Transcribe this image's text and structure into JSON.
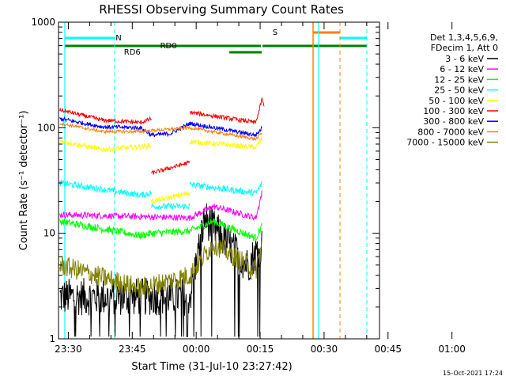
{
  "chart_data": {
    "type": "line",
    "title": "RHESSI Observing Summary Count Rates",
    "xlabel": "Start Time (31-Jul-10 23:27:42)",
    "ylabel": "Count Rate (s⁻¹ detector⁻¹)",
    "x_ticks": [
      "23:30",
      "23:45",
      "00:00",
      "00:15",
      "00:30",
      "00:45",
      "01:00"
    ],
    "y_ticks": [
      "1",
      "10",
      "100",
      "1000"
    ],
    "xlim_minutes": [
      -2.3,
      73
    ],
    "ylim": [
      1,
      1000
    ],
    "y_scale": "log",
    "legend_header": [
      "Det 1,3,4,5,6,9,",
      "FDecim 1, Att 0"
    ],
    "series": [
      {
        "name": "3 - 6 keV",
        "color": "#000000",
        "segments": [
          {
            "x": [
              -2.0,
              28.5,
              32.0,
              42.0,
              45.5
            ],
            "y": [
              2.5,
              2.5,
              14,
              5,
              8
            ]
          }
        ]
      },
      {
        "name": "6 - 12 keV",
        "color": "#ff00ff",
        "segments": [
          {
            "x": [
              -2.0,
              28.5,
              34.0,
              44.0,
              45.5
            ],
            "y": [
              15,
              14,
              18,
              14,
              25
            ]
          }
        ]
      },
      {
        "name": "12 - 25 keV",
        "color": "#00ff00",
        "segments": [
          {
            "x": [
              -2.0,
              17.0,
              19.5,
              28.5,
              34.0,
              44.0,
              45.5
            ],
            "y": [
              13,
              9.5,
              10,
              10.5,
              13,
              9,
              12
            ]
          }
        ]
      },
      {
        "name": "25 - 50 keV",
        "color": "#00ffff",
        "segments": [
          {
            "x": [
              -2.0,
              17.0,
              19.5
            ],
            "y": [
              30,
              23,
              24
            ]
          },
          {
            "x": [
              19.5,
              28.5
            ],
            "y": [
              18,
              18
            ]
          },
          {
            "x": [
              28.5,
              44.0,
              45.5
            ],
            "y": [
              29,
              24,
              30
            ]
          }
        ]
      },
      {
        "name": "50 - 100 keV",
        "color": "#ffff00",
        "segments": [
          {
            "x": [
              -2.0,
              8.0,
              17.0,
              19.5
            ],
            "y": [
              75,
              62,
              66,
              68
            ]
          },
          {
            "x": [
              19.5,
              28.5
            ],
            "y": [
              20,
              24
            ]
          },
          {
            "x": [
              28.5,
              44.0,
              45.5
            ],
            "y": [
              74,
              65,
              80
            ]
          }
        ]
      },
      {
        "name": "100 - 300 keV",
        "color": "#ff0000",
        "segments": [
          {
            "x": [
              -2.0,
              8.0,
              17.0,
              19.5
            ],
            "y": [
              148,
              118,
              112,
              122
            ]
          },
          {
            "x": [
              19.5,
              28.5
            ],
            "y": [
              37,
              47
            ]
          },
          {
            "x": [
              28.5,
              44.0,
              45.5,
              46.0
            ],
            "y": [
              140,
              112,
              190,
              150
            ]
          }
        ]
      },
      {
        "name": "300 - 800 keV",
        "color": "#0000ff",
        "segments": [
          {
            "x": [
              -2.0,
              8.0,
              17.0,
              19.5,
              24.0,
              28.5,
              44.0,
              45.5
            ],
            "y": [
              122,
              102,
              100,
              85,
              88,
              110,
              85,
              100
            ]
          }
        ]
      },
      {
        "name": "800 - 7000 keV",
        "color": "#ff8000",
        "segments": [
          {
            "x": [
              -2.0,
              8.0,
              17.0,
              19.5,
              24.0,
              28.5,
              44.0,
              45.5
            ],
            "y": [
              110,
              92,
              92,
              94,
              97,
              100,
              78,
              90
            ]
          }
        ]
      },
      {
        "name": "7000 - 15000 keV",
        "color": "#808000",
        "segments": [
          {
            "x": [
              -2.0,
              17.0,
              28.5,
              34.0,
              44.0,
              45.5
            ],
            "y": [
              5,
              3,
              4,
              8,
              4.5,
              8
            ]
          }
        ]
      }
    ],
    "annotations": [
      {
        "text": "N",
        "color": "#00ffff",
        "x": 11.8
      },
      {
        "text": "S",
        "color": "#ff8000",
        "x": 48.5
      },
      {
        "text": "RD0",
        "color": "#007f00",
        "x": 23.5
      },
      {
        "text": "RD6",
        "color": "#007f00",
        "x": 15.0
      }
    ],
    "timestamp": "15-Oct-2021 17:24"
  }
}
